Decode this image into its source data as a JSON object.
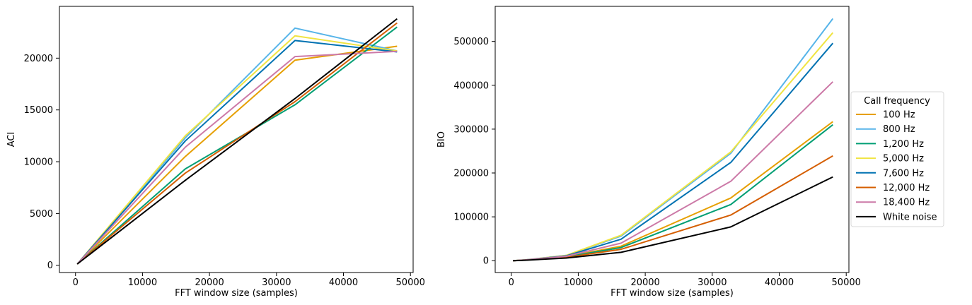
{
  "chart_data": [
    {
      "type": "line",
      "xlabel": "FFT window size (samples)",
      "ylabel": "ACI",
      "xlim": [
        -2400,
        50400
      ],
      "ylim": [
        -700,
        25000
      ],
      "xticks": [
        0,
        10000,
        20000,
        30000,
        40000,
        50000
      ],
      "yticks": [
        0,
        5000,
        10000,
        15000,
        20000
      ],
      "grid": false,
      "x": [
        256,
        16384,
        32768,
        48000
      ],
      "series": [
        {
          "name": "100 Hz",
          "color": "#E69F00",
          "values": [
            120,
            10500,
            19800,
            21150
          ]
        },
        {
          "name": "800 Hz",
          "color": "#56B4E9",
          "values": [
            120,
            12300,
            22900,
            20700
          ]
        },
        {
          "name": "1,200 Hz",
          "color": "#009E73",
          "values": [
            120,
            9300,
            15500,
            23000
          ]
        },
        {
          "name": "5,000 Hz",
          "color": "#F0E442",
          "values": [
            120,
            12500,
            22150,
            20700
          ]
        },
        {
          "name": "7,600 Hz",
          "color": "#0072B2",
          "values": [
            120,
            12000,
            21700,
            20600
          ]
        },
        {
          "name": "12,000 Hz",
          "color": "#D55E00",
          "values": [
            120,
            8900,
            15800,
            23400
          ]
        },
        {
          "name": "18,400 Hz",
          "color": "#CC79A7",
          "values": [
            120,
            11400,
            20150,
            20650
          ]
        },
        {
          "name": "White noise",
          "color": "#000000",
          "values": [
            120,
            8200,
            16100,
            23800
          ]
        }
      ]
    },
    {
      "type": "line",
      "xlabel": "FFT window size (samples)",
      "ylabel": "BIO",
      "xlim": [
        -2400,
        50400
      ],
      "ylim": [
        -27000,
        580000
      ],
      "xticks": [
        0,
        10000,
        20000,
        30000,
        40000,
        50000
      ],
      "yticks": [
        0,
        100000,
        200000,
        300000,
        400000,
        500000
      ],
      "grid": false,
      "x": [
        256,
        2048,
        8192,
        16384,
        32768,
        48000
      ],
      "series": [
        {
          "name": "100 Hz",
          "color": "#E69F00",
          "values": [
            0,
            1500,
            9000,
            33000,
            143000,
            317000
          ]
        },
        {
          "name": "800 Hz",
          "color": "#56B4E9",
          "values": [
            0,
            1800,
            12000,
            56000,
            245000,
            552000
          ]
        },
        {
          "name": "1,200 Hz",
          "color": "#009E73",
          "values": [
            0,
            1400,
            8500,
            30000,
            128000,
            310000
          ]
        },
        {
          "name": "5,000 Hz",
          "color": "#F0E442",
          "values": [
            0,
            1800,
            12000,
            58000,
            248000,
            520000
          ]
        },
        {
          "name": "7,600 Hz",
          "color": "#0072B2",
          "values": [
            0,
            1700,
            11000,
            49000,
            224000,
            496000
          ]
        },
        {
          "name": "12,000 Hz",
          "color": "#D55E00",
          "values": [
            0,
            1300,
            7500,
            26000,
            104000,
            239000
          ]
        },
        {
          "name": "18,400 Hz",
          "color": "#CC79A7",
          "values": [
            0,
            1600,
            10000,
            40000,
            181000,
            408000
          ]
        },
        {
          "name": "White noise",
          "color": "#000000",
          "values": [
            0,
            1000,
            6000,
            19000,
            77000,
            191000
          ]
        }
      ],
      "legend": {
        "title": "Call frequency",
        "placement": "right, outside the right plot",
        "entries": [
          "100 Hz",
          "800 Hz",
          "1,200 Hz",
          "5,000 Hz",
          "7,600 Hz",
          "12,000 Hz",
          "18,400 Hz",
          "White noise"
        ]
      }
    }
  ]
}
